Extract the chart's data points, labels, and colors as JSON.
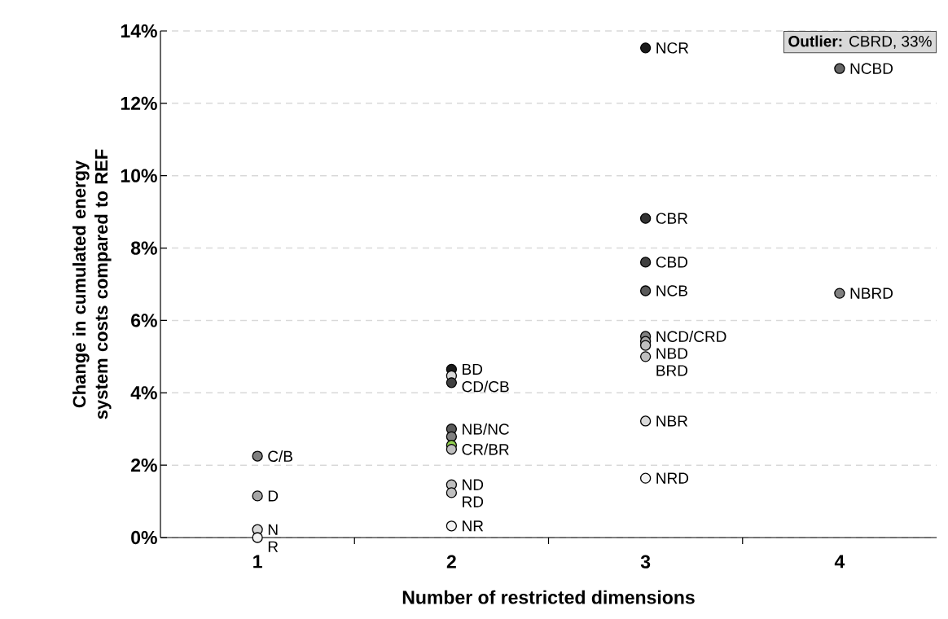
{
  "chart_data": {
    "type": "scatter",
    "xlabel": "Number of restricted dimensions",
    "ylabel": "Change in cumulated energy system costs compared to REF",
    "xlim": [
      0.5,
      4.5
    ],
    "xticks": [
      {
        "value": 1,
        "label": "1"
      },
      {
        "value": 1.5,
        "label": null
      },
      {
        "value": 2,
        "label": "2"
      },
      {
        "value": 2.5,
        "label": null
      },
      {
        "value": 3,
        "label": "3"
      },
      {
        "value": 3.5,
        "label": null
      },
      {
        "value": 4,
        "label": "4"
      }
    ],
    "ylim": [
      0,
      14
    ],
    "yticks": [
      {
        "value": 0,
        "label": "0%"
      },
      {
        "value": 2,
        "label": "2%"
      },
      {
        "value": 4,
        "label": "4%"
      },
      {
        "value": 6,
        "label": "6%"
      },
      {
        "value": 8,
        "label": "8%"
      },
      {
        "value": 10,
        "label": "10%"
      },
      {
        "value": 12,
        "label": "12%"
      },
      {
        "value": 14,
        "label": "14%"
      }
    ],
    "grid": "y",
    "marker": "circle",
    "x": [
      1,
      1,
      1,
      1,
      2,
      2,
      2,
      2,
      2,
      2,
      2,
      2,
      2,
      2,
      3,
      3,
      3,
      3,
      3,
      3,
      3,
      3,
      3,
      3,
      4,
      4
    ],
    "values": [
      2.25,
      1.15,
      0.22,
      0.0,
      4.65,
      4.47,
      4.28,
      3.0,
      2.79,
      2.55,
      2.44,
      1.46,
      1.24,
      0.32,
      13.53,
      8.82,
      7.61,
      6.82,
      5.56,
      5.42,
      5.31,
      5.0,
      3.22,
      1.64,
      12.96,
      6.75
    ],
    "colors": [
      "#7f7f7f",
      "#a6a6a6",
      "#d9d9d9",
      "#f2f2f2",
      "#1a1a1a",
      "#d9d9d9",
      "#404040",
      "#595959",
      "#808080",
      "#92d050",
      "#bfbfbf",
      "#bfbfbf",
      "#bfbfbf",
      "#f2f2f2",
      "#1a1a1a",
      "#333333",
      "#404040",
      "#595959",
      "#808080",
      "#a6a6a6",
      "#bfbfbf",
      "#bfbfbf",
      "#d9d9d9",
      "#f2f2f2",
      "#666666",
      "#808080"
    ],
    "annotations": [
      {
        "text": "C/B",
        "x": 1,
        "y": 2.25
      },
      {
        "text": "D",
        "x": 1,
        "y": 1.15
      },
      {
        "text": "N",
        "x": 1,
        "y": 0.22
      },
      {
        "text": "R",
        "x": 1,
        "y": 0.0
      },
      {
        "text": "BD",
        "x": 2,
        "y": 4.65
      },
      {
        "text": "CD/CB",
        "x": 2,
        "y": 4.28
      },
      {
        "text": "NB/NC",
        "x": 2,
        "y": 3.0
      },
      {
        "text": "CR/BR",
        "x": 2,
        "y": 2.44
      },
      {
        "text": "ND",
        "x": 2,
        "y": 1.46
      },
      {
        "text": "RD",
        "x": 2,
        "y": 1.24
      },
      {
        "text": "NR",
        "x": 2,
        "y": 0.32
      },
      {
        "text": "NCR",
        "x": 3,
        "y": 13.53
      },
      {
        "text": "CBR",
        "x": 3,
        "y": 8.82
      },
      {
        "text": "CBD",
        "x": 3,
        "y": 7.61
      },
      {
        "text": "NCB",
        "x": 3,
        "y": 6.82
      },
      {
        "text": "NCD/CRD",
        "x": 3,
        "y": 5.56
      },
      {
        "text": "NBD",
        "x": 3,
        "y": 5.31
      },
      {
        "text": "BRD",
        "x": 3,
        "y": 5.0
      },
      {
        "text": "NBR",
        "x": 3,
        "y": 3.22
      },
      {
        "text": "NRD",
        "x": 3,
        "y": 1.64
      },
      {
        "text": "NCBD",
        "x": 4,
        "y": 12.96
      },
      {
        "text": "NBRD",
        "x": 4,
        "y": 6.75
      },
      "**Outlier:** CBRD, 33%"
    ]
  }
}
